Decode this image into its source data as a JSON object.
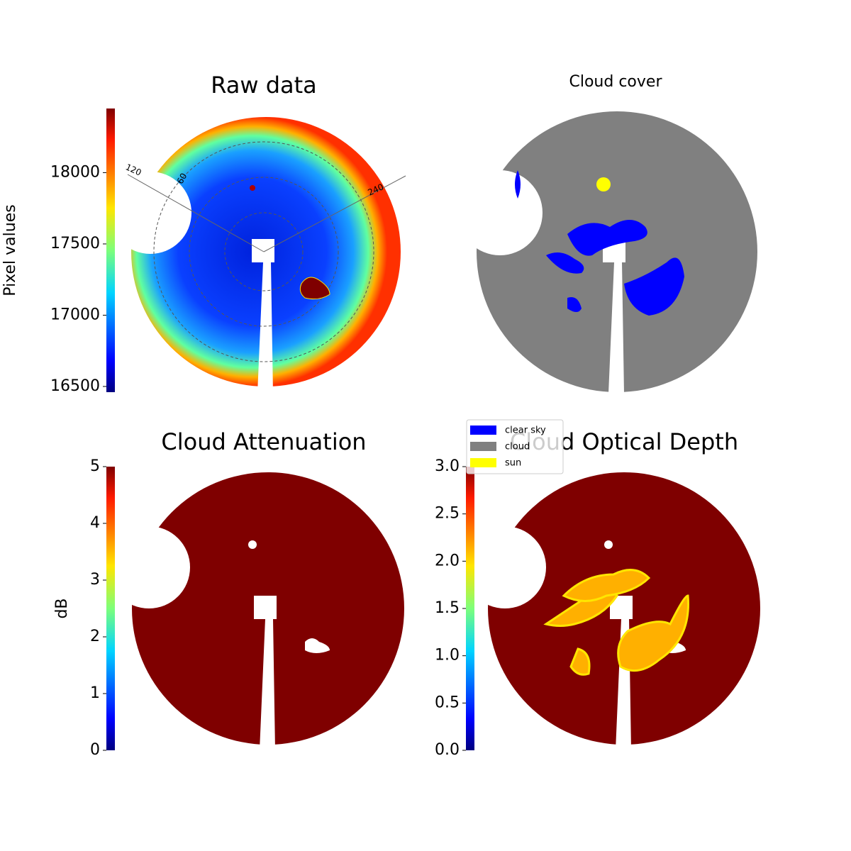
{
  "chart_data": [
    {
      "type": "image",
      "title": "Raw data",
      "colormap": "jet",
      "colorbar": {
        "label": "Pixel values",
        "clim": [
          16460,
          18450
        ],
        "ticks": [
          16500,
          17000,
          17500,
          18000
        ]
      },
      "angle_labels": [
        "120",
        "60",
        "240"
      ]
    },
    {
      "type": "image",
      "title": "Cloud cover",
      "legend": [
        {
          "name": "clear sky",
          "color": "#0000ff"
        },
        {
          "name": "cloud",
          "color": "#808080"
        },
        {
          "name": "sun",
          "color": "#ffff00"
        }
      ]
    },
    {
      "type": "image",
      "title": "Cloud Attenuation",
      "colormap": "jet",
      "colorbar": {
        "label": "dB",
        "clim": [
          0,
          5
        ],
        "ticks": [
          0,
          1,
          2,
          3,
          4,
          5
        ]
      }
    },
    {
      "type": "image",
      "title": "Cloud Optical Depth",
      "colormap": "jet",
      "colorbar": {
        "clim": [
          0,
          3
        ],
        "ticks": [
          {
            "value": 0,
            "label": "0.0"
          },
          {
            "value": 0.5,
            "label": "0.5"
          },
          {
            "value": 1,
            "label": "1.0"
          },
          {
            "value": 1.5,
            "label": "1.5"
          },
          {
            "value": 2,
            "label": "2.0"
          },
          {
            "value": 2.5,
            "label": "2.5"
          },
          {
            "value": 3,
            "label": "3.0"
          }
        ]
      }
    }
  ]
}
